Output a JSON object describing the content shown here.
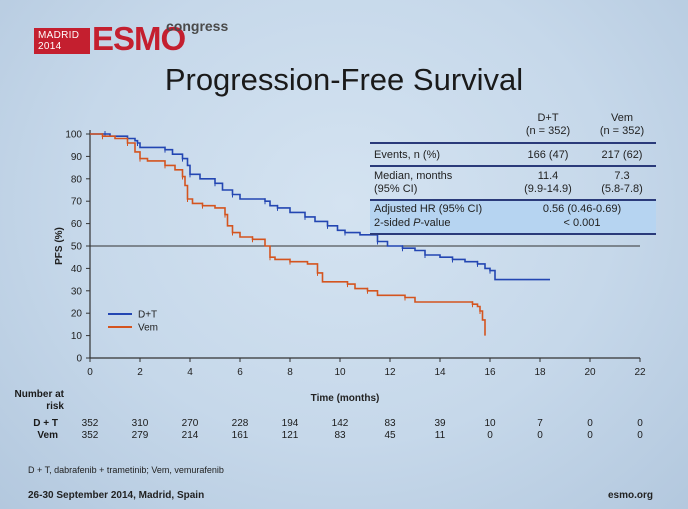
{
  "header": {
    "logo_city": "MADRID",
    "logo_year": "2014",
    "logo_esmo": "ESMO",
    "logo_congress": "congress",
    "title": "Progression-Free Survival"
  },
  "table": {
    "col_dt_name": "D+T",
    "col_dt_n": "(n = 352)",
    "col_vem_name": "Vem",
    "col_vem_n": "(n = 352)",
    "rows": [
      {
        "label": "Events, n (%)",
        "dt": "166 (47)",
        "vem": "217 (62)"
      },
      {
        "label": "Median, months",
        "dt": "11.4",
        "vem": "7.3"
      },
      {
        "label": "(95% CI)",
        "dt": "(9.9-14.9)",
        "vem": "(5.8-7.8)"
      }
    ],
    "hr_label": "Adjusted HR (95% CI)",
    "hr_value": "0.56 (0.46-0.69)",
    "p_label_prefix": "2-sided ",
    "p_label_italic": "P",
    "p_label_suffix": "-value",
    "p_value": "< 0.001"
  },
  "risk": {
    "title_line1": "Number at",
    "title_line2": "risk",
    "rows": [
      {
        "label": "D + T",
        "values": [
          "352",
          "310",
          "270",
          "228",
          "194",
          "142",
          "83",
          "39",
          "10",
          "7",
          "0",
          "0"
        ]
      },
      {
        "label": "Vem",
        "values": [
          "352",
          "279",
          "214",
          "161",
          "121",
          "83",
          "45",
          "11",
          "0",
          "0",
          "0",
          "0"
        ]
      }
    ]
  },
  "footer": {
    "footnote": "D + T, dabrafenib + trametinib; Vem, vemurafenib",
    "date": "26-30 September 2014, Madrid, Spain",
    "site": "esmo.org"
  },
  "chart_data": {
    "type": "line",
    "title": "",
    "xlabel": "Time (months)",
    "ylabel": "PFS (%)",
    "xlim": [
      0,
      22
    ],
    "ylim": [
      0,
      100
    ],
    "xticks": [
      0,
      2,
      4,
      6,
      8,
      10,
      12,
      14,
      16,
      18,
      20,
      22
    ],
    "yticks": [
      0,
      10,
      20,
      30,
      40,
      50,
      60,
      70,
      80,
      90,
      100
    ],
    "reference_line_y": 50,
    "legend_position": "bottom-left",
    "series": [
      {
        "name": "D+T",
        "color": "#2346b2",
        "points": [
          [
            0,
            100
          ],
          [
            0.6,
            100
          ],
          [
            0.8,
            99
          ],
          [
            1.5,
            98
          ],
          [
            1.8,
            97
          ],
          [
            1.9,
            96
          ],
          [
            2.0,
            94
          ],
          [
            3.0,
            93
          ],
          [
            3.3,
            91
          ],
          [
            3.7,
            89
          ],
          [
            3.9,
            86
          ],
          [
            4.0,
            82
          ],
          [
            4.4,
            80
          ],
          [
            5.0,
            78
          ],
          [
            5.3,
            75
          ],
          [
            5.7,
            73
          ],
          [
            6.0,
            71
          ],
          [
            7.0,
            70
          ],
          [
            7.2,
            68
          ],
          [
            7.5,
            67
          ],
          [
            8.0,
            65
          ],
          [
            8.6,
            63
          ],
          [
            9.0,
            61
          ],
          [
            9.5,
            59
          ],
          [
            9.9,
            57
          ],
          [
            10.2,
            56
          ],
          [
            10.8,
            55
          ],
          [
            11.5,
            52
          ],
          [
            11.9,
            50
          ],
          [
            12.5,
            49
          ],
          [
            13.0,
            48
          ],
          [
            13.4,
            46
          ],
          [
            14.0,
            45
          ],
          [
            14.5,
            44
          ],
          [
            15.0,
            43
          ],
          [
            15.5,
            42
          ],
          [
            15.8,
            40
          ],
          [
            16.0,
            39
          ],
          [
            16.2,
            35
          ],
          [
            18.4,
            35
          ]
        ]
      },
      {
        "name": "Vem",
        "color": "#d4541f",
        "points": [
          [
            0,
            100
          ],
          [
            0.5,
            99
          ],
          [
            1.0,
            98
          ],
          [
            1.5,
            96
          ],
          [
            1.8,
            92
          ],
          [
            2.0,
            89
          ],
          [
            2.3,
            88
          ],
          [
            3.0,
            86
          ],
          [
            3.4,
            84
          ],
          [
            3.7,
            81
          ],
          [
            3.8,
            77
          ],
          [
            3.9,
            71
          ],
          [
            4.1,
            69
          ],
          [
            4.5,
            68
          ],
          [
            5.0,
            67
          ],
          [
            5.4,
            64
          ],
          [
            5.5,
            59
          ],
          [
            5.7,
            56
          ],
          [
            6.0,
            54
          ],
          [
            6.5,
            53
          ],
          [
            7.0,
            50
          ],
          [
            7.2,
            45
          ],
          [
            7.4,
            44
          ],
          [
            8.0,
            43
          ],
          [
            8.7,
            42
          ],
          [
            9.1,
            38
          ],
          [
            9.3,
            34
          ],
          [
            10.3,
            33
          ],
          [
            10.6,
            31
          ],
          [
            11.1,
            30
          ],
          [
            11.5,
            28
          ],
          [
            12.6,
            27
          ],
          [
            13.0,
            25
          ],
          [
            15.3,
            24
          ],
          [
            15.5,
            23
          ],
          [
            15.6,
            21
          ],
          [
            15.7,
            17
          ],
          [
            15.8,
            10
          ]
        ]
      }
    ]
  }
}
